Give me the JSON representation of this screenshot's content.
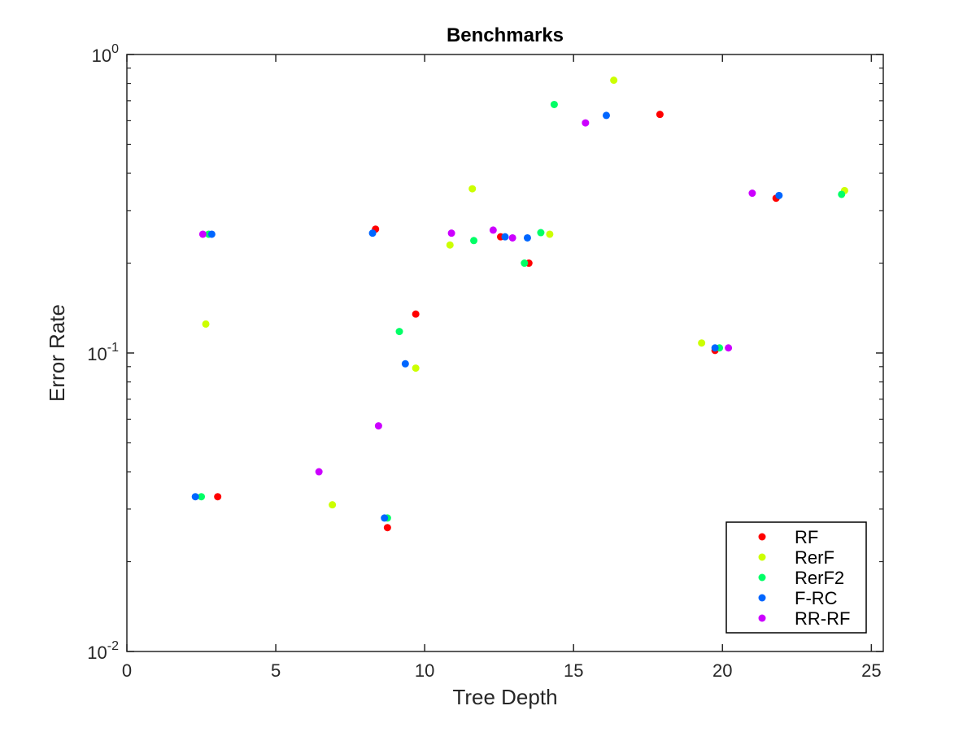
{
  "chart_data": {
    "type": "scatter",
    "title": "Benchmarks",
    "xlabel": "Tree Depth",
    "ylabel": "Error Rate",
    "xlim": [
      0,
      25.4
    ],
    "ylim": [
      0.01,
      1
    ],
    "yscale": "log",
    "x_ticks": [
      0,
      5,
      10,
      15,
      20,
      25
    ],
    "x_tick_labels": [
      "0",
      "5",
      "10",
      "15",
      "20",
      "25"
    ],
    "y_ticks": [
      {
        "value": 1,
        "base": "10",
        "exp": "0"
      },
      {
        "value": 0.1,
        "base": "10",
        "exp": "-1"
      },
      {
        "value": 0.01,
        "base": "10",
        "exp": "-2"
      }
    ],
    "grid": false,
    "legend_position": "bottom-right",
    "series": [
      {
        "name": "RF",
        "color": "#ff0000",
        "points": [
          {
            "x": 3.05,
            "y": 0.033
          },
          {
            "x": 8.35,
            "y": 0.26
          },
          {
            "x": 9.7,
            "y": 0.135
          },
          {
            "x": 8.75,
            "y": 0.026
          },
          {
            "x": 12.55,
            "y": 0.245
          },
          {
            "x": 13.5,
            "y": 0.2
          },
          {
            "x": 17.9,
            "y": 0.63
          },
          {
            "x": 19.75,
            "y": 0.102
          },
          {
            "x": 21.8,
            "y": 0.33
          }
        ]
      },
      {
        "name": "RerF",
        "color": "#ccff00",
        "points": [
          {
            "x": 2.65,
            "y": 0.125
          },
          {
            "x": 6.9,
            "y": 0.031
          },
          {
            "x": 9.7,
            "y": 0.089
          },
          {
            "x": 10.85,
            "y": 0.23
          },
          {
            "x": 11.6,
            "y": 0.355
          },
          {
            "x": 14.2,
            "y": 0.25
          },
          {
            "x": 16.35,
            "y": 0.82
          },
          {
            "x": 19.3,
            "y": 0.108
          },
          {
            "x": 24.1,
            "y": 0.35
          }
        ]
      },
      {
        "name": "RerF2",
        "color": "#00ff66",
        "points": [
          {
            "x": 2.5,
            "y": 0.033
          },
          {
            "x": 2.75,
            "y": 0.25
          },
          {
            "x": 8.75,
            "y": 0.028
          },
          {
            "x": 9.15,
            "y": 0.118
          },
          {
            "x": 11.65,
            "y": 0.238
          },
          {
            "x": 13.35,
            "y": 0.2
          },
          {
            "x": 13.9,
            "y": 0.253
          },
          {
            "x": 14.35,
            "y": 0.68
          },
          {
            "x": 19.9,
            "y": 0.104
          },
          {
            "x": 24.0,
            "y": 0.34
          }
        ]
      },
      {
        "name": "F-RC",
        "color": "#0066ff",
        "points": [
          {
            "x": 2.3,
            "y": 0.033
          },
          {
            "x": 2.85,
            "y": 0.25
          },
          {
            "x": 8.25,
            "y": 0.252
          },
          {
            "x": 8.65,
            "y": 0.028
          },
          {
            "x": 9.35,
            "y": 0.092
          },
          {
            "x": 12.7,
            "y": 0.245
          },
          {
            "x": 13.45,
            "y": 0.243
          },
          {
            "x": 16.1,
            "y": 0.625
          },
          {
            "x": 19.75,
            "y": 0.104
          },
          {
            "x": 21.9,
            "y": 0.337
          }
        ]
      },
      {
        "name": "RR-RF",
        "color": "#cc00ff",
        "points": [
          {
            "x": 2.55,
            "y": 0.25
          },
          {
            "x": 6.45,
            "y": 0.04
          },
          {
            "x": 8.45,
            "y": 0.057
          },
          {
            "x": 10.9,
            "y": 0.252
          },
          {
            "x": 12.3,
            "y": 0.258
          },
          {
            "x": 12.95,
            "y": 0.243
          },
          {
            "x": 15.4,
            "y": 0.59
          },
          {
            "x": 20.2,
            "y": 0.104
          },
          {
            "x": 21.0,
            "y": 0.343
          }
        ]
      }
    ]
  }
}
